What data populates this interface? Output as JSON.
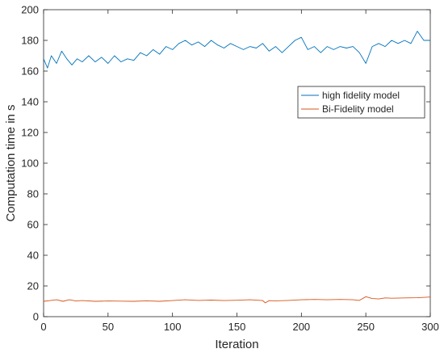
{
  "chart_data": {
    "type": "line",
    "title": "",
    "xlabel": "Iteration",
    "ylabel": "Computation time in s",
    "xlim": [
      0,
      300
    ],
    "ylim": [
      0,
      200
    ],
    "xticks": [
      0,
      50,
      100,
      150,
      200,
      250,
      300
    ],
    "yticks": [
      0,
      20,
      40,
      60,
      80,
      100,
      120,
      140,
      160,
      180,
      200
    ],
    "grid": false,
    "legend_position": "upper-right",
    "series": [
      {
        "name": "high fidelity model",
        "color": "#0072bd",
        "points": [
          [
            0,
            168
          ],
          [
            3,
            162
          ],
          [
            6,
            170
          ],
          [
            10,
            165
          ],
          [
            14,
            173
          ],
          [
            18,
            168
          ],
          [
            22,
            164
          ],
          [
            26,
            168
          ],
          [
            30,
            166
          ],
          [
            35,
            170
          ],
          [
            40,
            166
          ],
          [
            45,
            169
          ],
          [
            50,
            165
          ],
          [
            55,
            170
          ],
          [
            60,
            166
          ],
          [
            65,
            168
          ],
          [
            70,
            167
          ],
          [
            75,
            172
          ],
          [
            80,
            170
          ],
          [
            85,
            174
          ],
          [
            90,
            171
          ],
          [
            95,
            176
          ],
          [
            100,
            174
          ],
          [
            105,
            178
          ],
          [
            110,
            180
          ],
          [
            115,
            177
          ],
          [
            120,
            179
          ],
          [
            125,
            176
          ],
          [
            130,
            180
          ],
          [
            135,
            177
          ],
          [
            140,
            175
          ],
          [
            145,
            178
          ],
          [
            150,
            176
          ],
          [
            155,
            174
          ],
          [
            160,
            176
          ],
          [
            165,
            175
          ],
          [
            170,
            178
          ],
          [
            175,
            173
          ],
          [
            180,
            176
          ],
          [
            185,
            172
          ],
          [
            190,
            176
          ],
          [
            195,
            180
          ],
          [
            200,
            182
          ],
          [
            205,
            174
          ],
          [
            210,
            176
          ],
          [
            215,
            172
          ],
          [
            220,
            176
          ],
          [
            225,
            174
          ],
          [
            230,
            176
          ],
          [
            235,
            175
          ],
          [
            240,
            176
          ],
          [
            245,
            172
          ],
          [
            250,
            165
          ],
          [
            255,
            176
          ],
          [
            260,
            178
          ],
          [
            265,
            176
          ],
          [
            270,
            180
          ],
          [
            275,
            178
          ],
          [
            280,
            180
          ],
          [
            285,
            178
          ],
          [
            290,
            186
          ],
          [
            295,
            180
          ],
          [
            300,
            180
          ]
        ]
      },
      {
        "name": "Bi-Fidelity model",
        "color": "#d95319",
        "points": [
          [
            0,
            10
          ],
          [
            5,
            10.5
          ],
          [
            10,
            11
          ],
          [
            15,
            10
          ],
          [
            20,
            11
          ],
          [
            25,
            10.2
          ],
          [
            30,
            10.5
          ],
          [
            40,
            10
          ],
          [
            50,
            10.2
          ],
          [
            60,
            10.1
          ],
          [
            70,
            10
          ],
          [
            80,
            10.3
          ],
          [
            90,
            10
          ],
          [
            100,
            10.5
          ],
          [
            110,
            11
          ],
          [
            120,
            10.6
          ],
          [
            130,
            10.8
          ],
          [
            140,
            10.5
          ],
          [
            150,
            10.7
          ],
          [
            160,
            11
          ],
          [
            170,
            10.5
          ],
          [
            172,
            9
          ],
          [
            175,
            10.4
          ],
          [
            180,
            10.3
          ],
          [
            190,
            10.6
          ],
          [
            200,
            11
          ],
          [
            210,
            11.2
          ],
          [
            220,
            11
          ],
          [
            230,
            11.2
          ],
          [
            240,
            11
          ],
          [
            245,
            10.6
          ],
          [
            250,
            13
          ],
          [
            255,
            11.8
          ],
          [
            260,
            11.5
          ],
          [
            265,
            12.2
          ],
          [
            270,
            12
          ],
          [
            280,
            12.2
          ],
          [
            290,
            12.3
          ],
          [
            300,
            12.8
          ]
        ]
      }
    ]
  }
}
